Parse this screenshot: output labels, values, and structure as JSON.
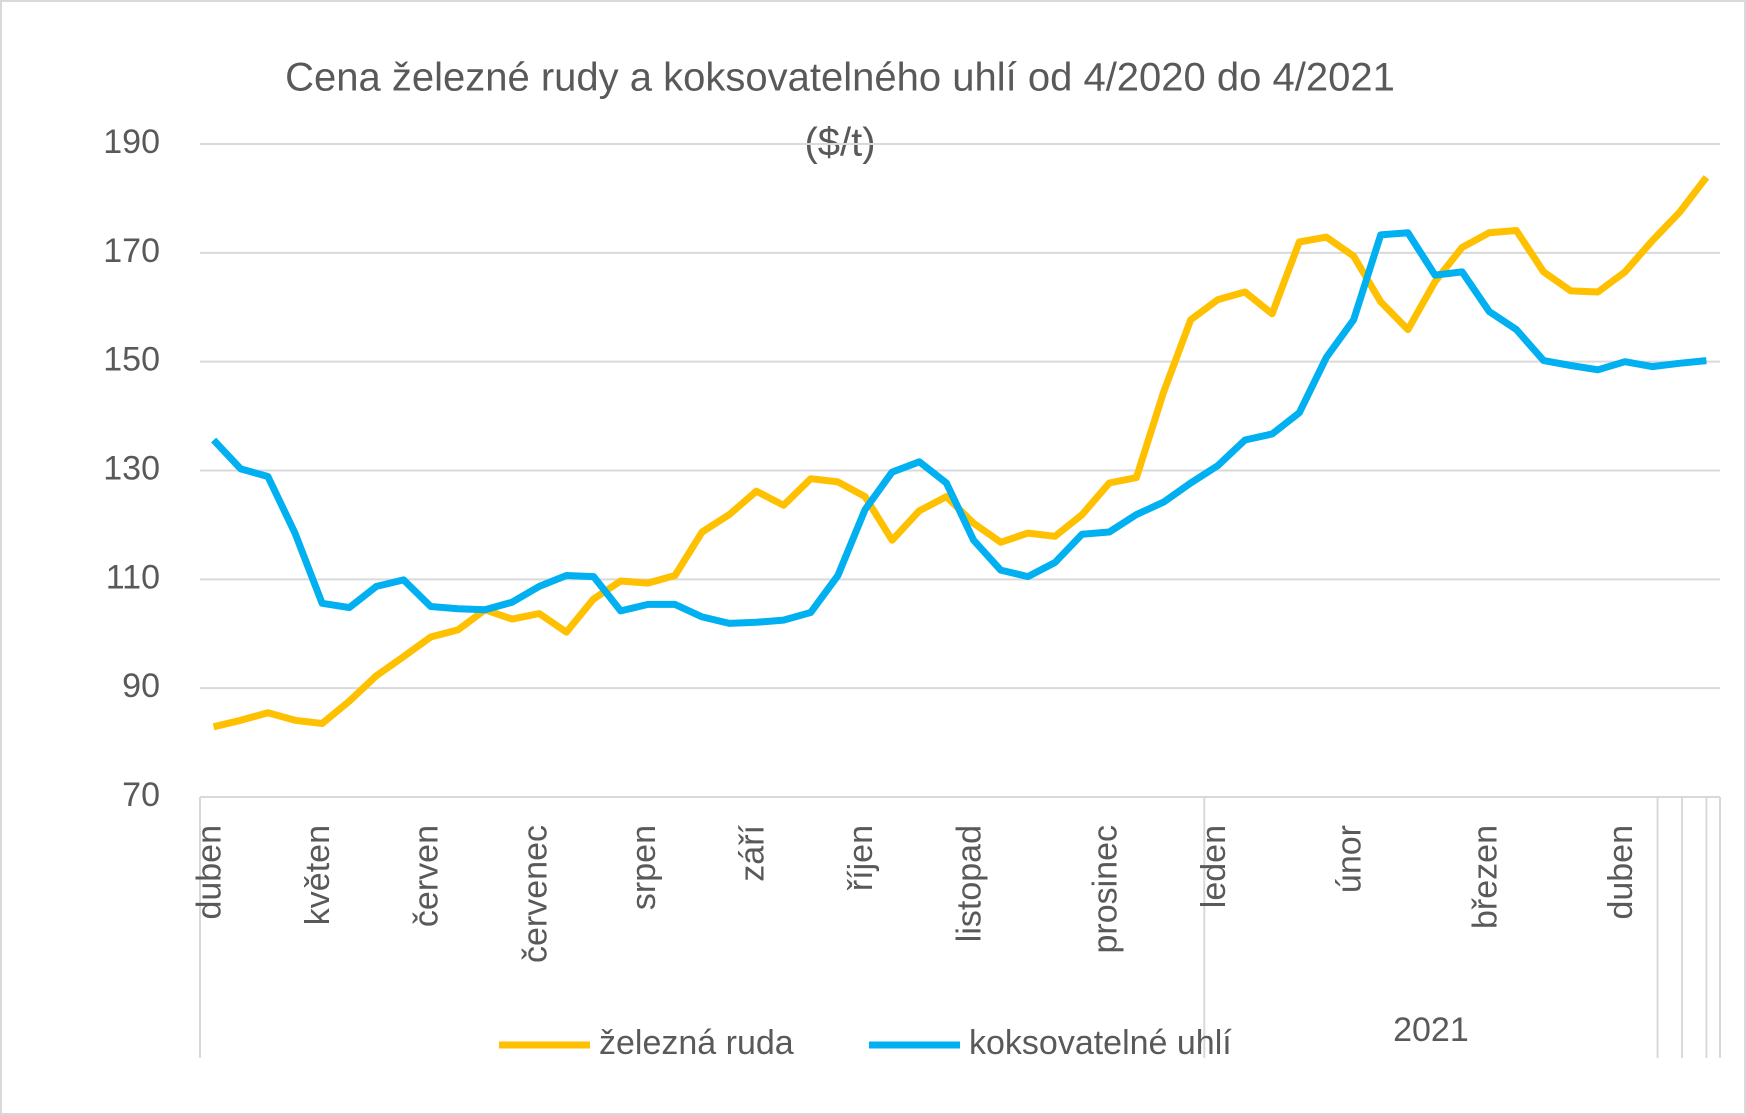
{
  "chart_data": {
    "type": "line",
    "title": [
      "Cena železné rudy a koksovatelného uhlí od 4/2020 do 4/2021",
      "($/t)"
    ],
    "categories": [
      "duben",
      null,
      null,
      null,
      "květen",
      null,
      null,
      null,
      "červen",
      null,
      null,
      null,
      "červenec",
      null,
      null,
      null,
      "srpen",
      null,
      null,
      null,
      "září",
      null,
      null,
      null,
      "říjen",
      null,
      null,
      null,
      "listopad",
      null,
      null,
      null,
      null,
      "prosinec",
      null,
      null,
      null,
      "leden",
      null,
      null,
      null,
      null,
      "únor",
      null,
      null,
      null,
      null,
      "březen",
      null,
      null,
      null,
      null,
      "duben",
      null,
      null,
      null
    ],
    "year_label": "2021",
    "series": [
      {
        "name": "železná ruda",
        "color": "#FFC000",
        "values": [
          82.9,
          84.1,
          85.5,
          84.1,
          83.5,
          87.6,
          92.3,
          95.8,
          99.4,
          100.7,
          104.4,
          102.7,
          103.7,
          100.3,
          106.4,
          109.7,
          109.3,
          110.7,
          118.7,
          121.9,
          126.2,
          123.6,
          128.5,
          127.9,
          125.2,
          117.2,
          122.6,
          125.2,
          120.3,
          116.8,
          118.5,
          117.9,
          121.9,
          127.7,
          128.7,
          144.4,
          157.7,
          161.4,
          162.8,
          158.8,
          172.0,
          172.9,
          169.4,
          161.0,
          155.9,
          164.7,
          171.0,
          173.7,
          174.1,
          166.5,
          163.0,
          162.8,
          166.5,
          172.2,
          177.4,
          183.9
        ]
      },
      {
        "name": "koksovatelné uhlí",
        "color": "#00B0F0",
        "values": [
          135.6,
          130.3,
          128.9,
          118.5,
          105.6,
          104.8,
          108.7,
          109.9,
          105.0,
          104.6,
          104.4,
          105.8,
          108.7,
          110.7,
          110.5,
          104.2,
          105.4,
          105.4,
          103.1,
          101.9,
          102.1,
          102.5,
          103.9,
          110.7,
          122.8,
          129.7,
          131.6,
          127.7,
          117.2,
          111.7,
          110.5,
          113.1,
          118.3,
          118.7,
          121.9,
          124.2,
          127.7,
          130.9,
          135.6,
          136.7,
          140.6,
          150.8,
          157.7,
          173.3,
          173.7,
          165.9,
          166.5,
          159.2,
          155.9,
          150.2,
          149.3,
          148.5,
          150.0,
          149.1,
          149.7,
          150.2
        ]
      }
    ],
    "ylim": [
      70,
      190
    ],
    "yticks": [
      70,
      90,
      110,
      130,
      150,
      170,
      190
    ],
    "grid": true
  }
}
